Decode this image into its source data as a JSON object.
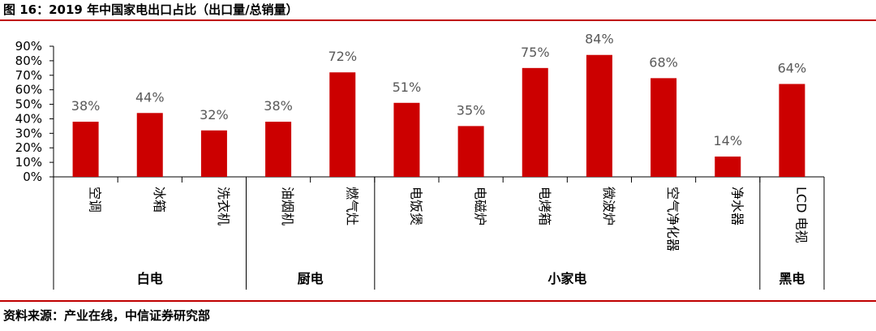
{
  "title": "图 16：2019 年中国家电出口占比（出口量/总销量）",
  "source": "资料来源：产业在线，中信证券研究部",
  "colors": {
    "bar": "#cc0000",
    "accent_rule": "#c00000",
    "data_label": "#595959"
  },
  "chart_data": {
    "type": "bar",
    "title": "",
    "xlabel": "",
    "ylabel": "",
    "ylim": [
      0,
      90
    ],
    "y_ticks": [
      "0%",
      "10%",
      "20%",
      "30%",
      "40%",
      "50%",
      "60%",
      "70%",
      "80%",
      "90%"
    ],
    "categories": [
      "空调",
      "冰箱",
      "洗衣机",
      "油烟机",
      "燃气灶",
      "电饭煲",
      "电磁炉",
      "电烤箱",
      "微波炉",
      "空气净化器",
      "净水器",
      "LCD 电视"
    ],
    "values": [
      38,
      44,
      32,
      38,
      72,
      51,
      35,
      75,
      84,
      68,
      14,
      64
    ],
    "value_labels": [
      "38%",
      "44%",
      "32%",
      "38%",
      "72%",
      "51%",
      "35%",
      "75%",
      "84%",
      "68%",
      "14%",
      "64%"
    ],
    "groups": [
      {
        "name": "白电",
        "start": 0,
        "end": 2
      },
      {
        "name": "厨电",
        "start": 3,
        "end": 4
      },
      {
        "name": "小家电",
        "start": 5,
        "end": 10
      },
      {
        "name": "黑电",
        "start": 11,
        "end": 11
      }
    ],
    "grid": false,
    "legend": "none"
  }
}
